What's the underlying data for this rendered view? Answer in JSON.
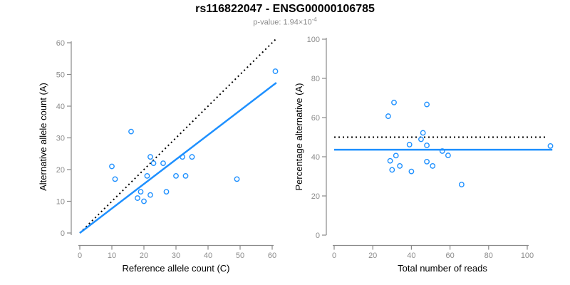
{
  "header": {
    "title": "rs116822047 - ENSG00000106785",
    "pvalue_label": "p-value: 1.94×10",
    "pvalue_exponent": "-4"
  },
  "colors": {
    "point_blue": "#1e90ff",
    "fit_line_blue": "#1e90ff",
    "dotted_line_black": "#000000",
    "axis_gray": "#8a8a8a",
    "tick_label_gray": "#8c8c8c",
    "axis_title_black": "#000000",
    "subtitle_gray": "#8c8c8c"
  },
  "chart_data": [
    {
      "type": "scatter",
      "panel": "left",
      "title": "",
      "xlabel": "Reference allele count (C)",
      "ylabel": "Alternative allele count (A)",
      "xlim": [
        0,
        61.3
      ],
      "ylim": [
        0,
        61.2
      ],
      "xticks": [
        0,
        10,
        20,
        30,
        40,
        50,
        60
      ],
      "yticks": [
        0,
        10,
        20,
        30,
        40,
        50,
        60
      ],
      "grid": false,
      "points": [
        [
          16,
          32
        ],
        [
          10,
          21
        ],
        [
          11,
          17
        ],
        [
          22,
          24
        ],
        [
          23,
          22
        ],
        [
          26,
          22
        ],
        [
          21,
          18
        ],
        [
          30,
          18
        ],
        [
          33,
          18
        ],
        [
          32,
          24
        ],
        [
          35,
          24
        ],
        [
          19,
          13
        ],
        [
          18,
          11
        ],
        [
          22,
          12
        ],
        [
          27,
          13
        ],
        [
          20,
          10
        ],
        [
          49,
          17
        ],
        [
          61,
          51
        ]
      ],
      "lines": [
        {
          "name": "identity-line",
          "style": "dotted",
          "color": "#000000",
          "x": [
            0,
            61.3
          ],
          "y": [
            0,
            61.3
          ]
        },
        {
          "name": "fit-line",
          "style": "solid",
          "color": "#1e90ff",
          "x": [
            0,
            61.3
          ],
          "y": [
            0,
            47.4
          ]
        }
      ]
    },
    {
      "type": "scatter",
      "panel": "right",
      "title": "",
      "xlabel": "Total number of reads",
      "ylabel": "Percentage alternative (A)",
      "xlim": [
        0,
        113
      ],
      "ylim": [
        0,
        100
      ],
      "xticks": [
        0,
        20,
        40,
        60,
        80,
        100
      ],
      "yticks": [
        0,
        20,
        40,
        60,
        80,
        100
      ],
      "grid": false,
      "points": [
        [
          48,
          66.7
        ],
        [
          31,
          67.7
        ],
        [
          28,
          60.7
        ],
        [
          46,
          52.2
        ],
        [
          45,
          48.9
        ],
        [
          48,
          45.8
        ],
        [
          39,
          46.2
        ],
        [
          48,
          37.5
        ],
        [
          51,
          35.3
        ],
        [
          56,
          42.9
        ],
        [
          59,
          40.7
        ],
        [
          32,
          40.6
        ],
        [
          29,
          37.9
        ],
        [
          34,
          35.3
        ],
        [
          40,
          32.5
        ],
        [
          30,
          33.3
        ],
        [
          66,
          25.8
        ],
        [
          112,
          45.5
        ]
      ],
      "lines": [
        {
          "name": "expected-50pct-line",
          "style": "dotted",
          "color": "#000000",
          "x": [
            0,
            110
          ],
          "y": [
            50,
            50
          ]
        },
        {
          "name": "mean-pct-line",
          "style": "solid",
          "color": "#1e90ff",
          "x": [
            0,
            113
          ],
          "y": [
            43.6,
            43.6
          ]
        }
      ]
    }
  ]
}
